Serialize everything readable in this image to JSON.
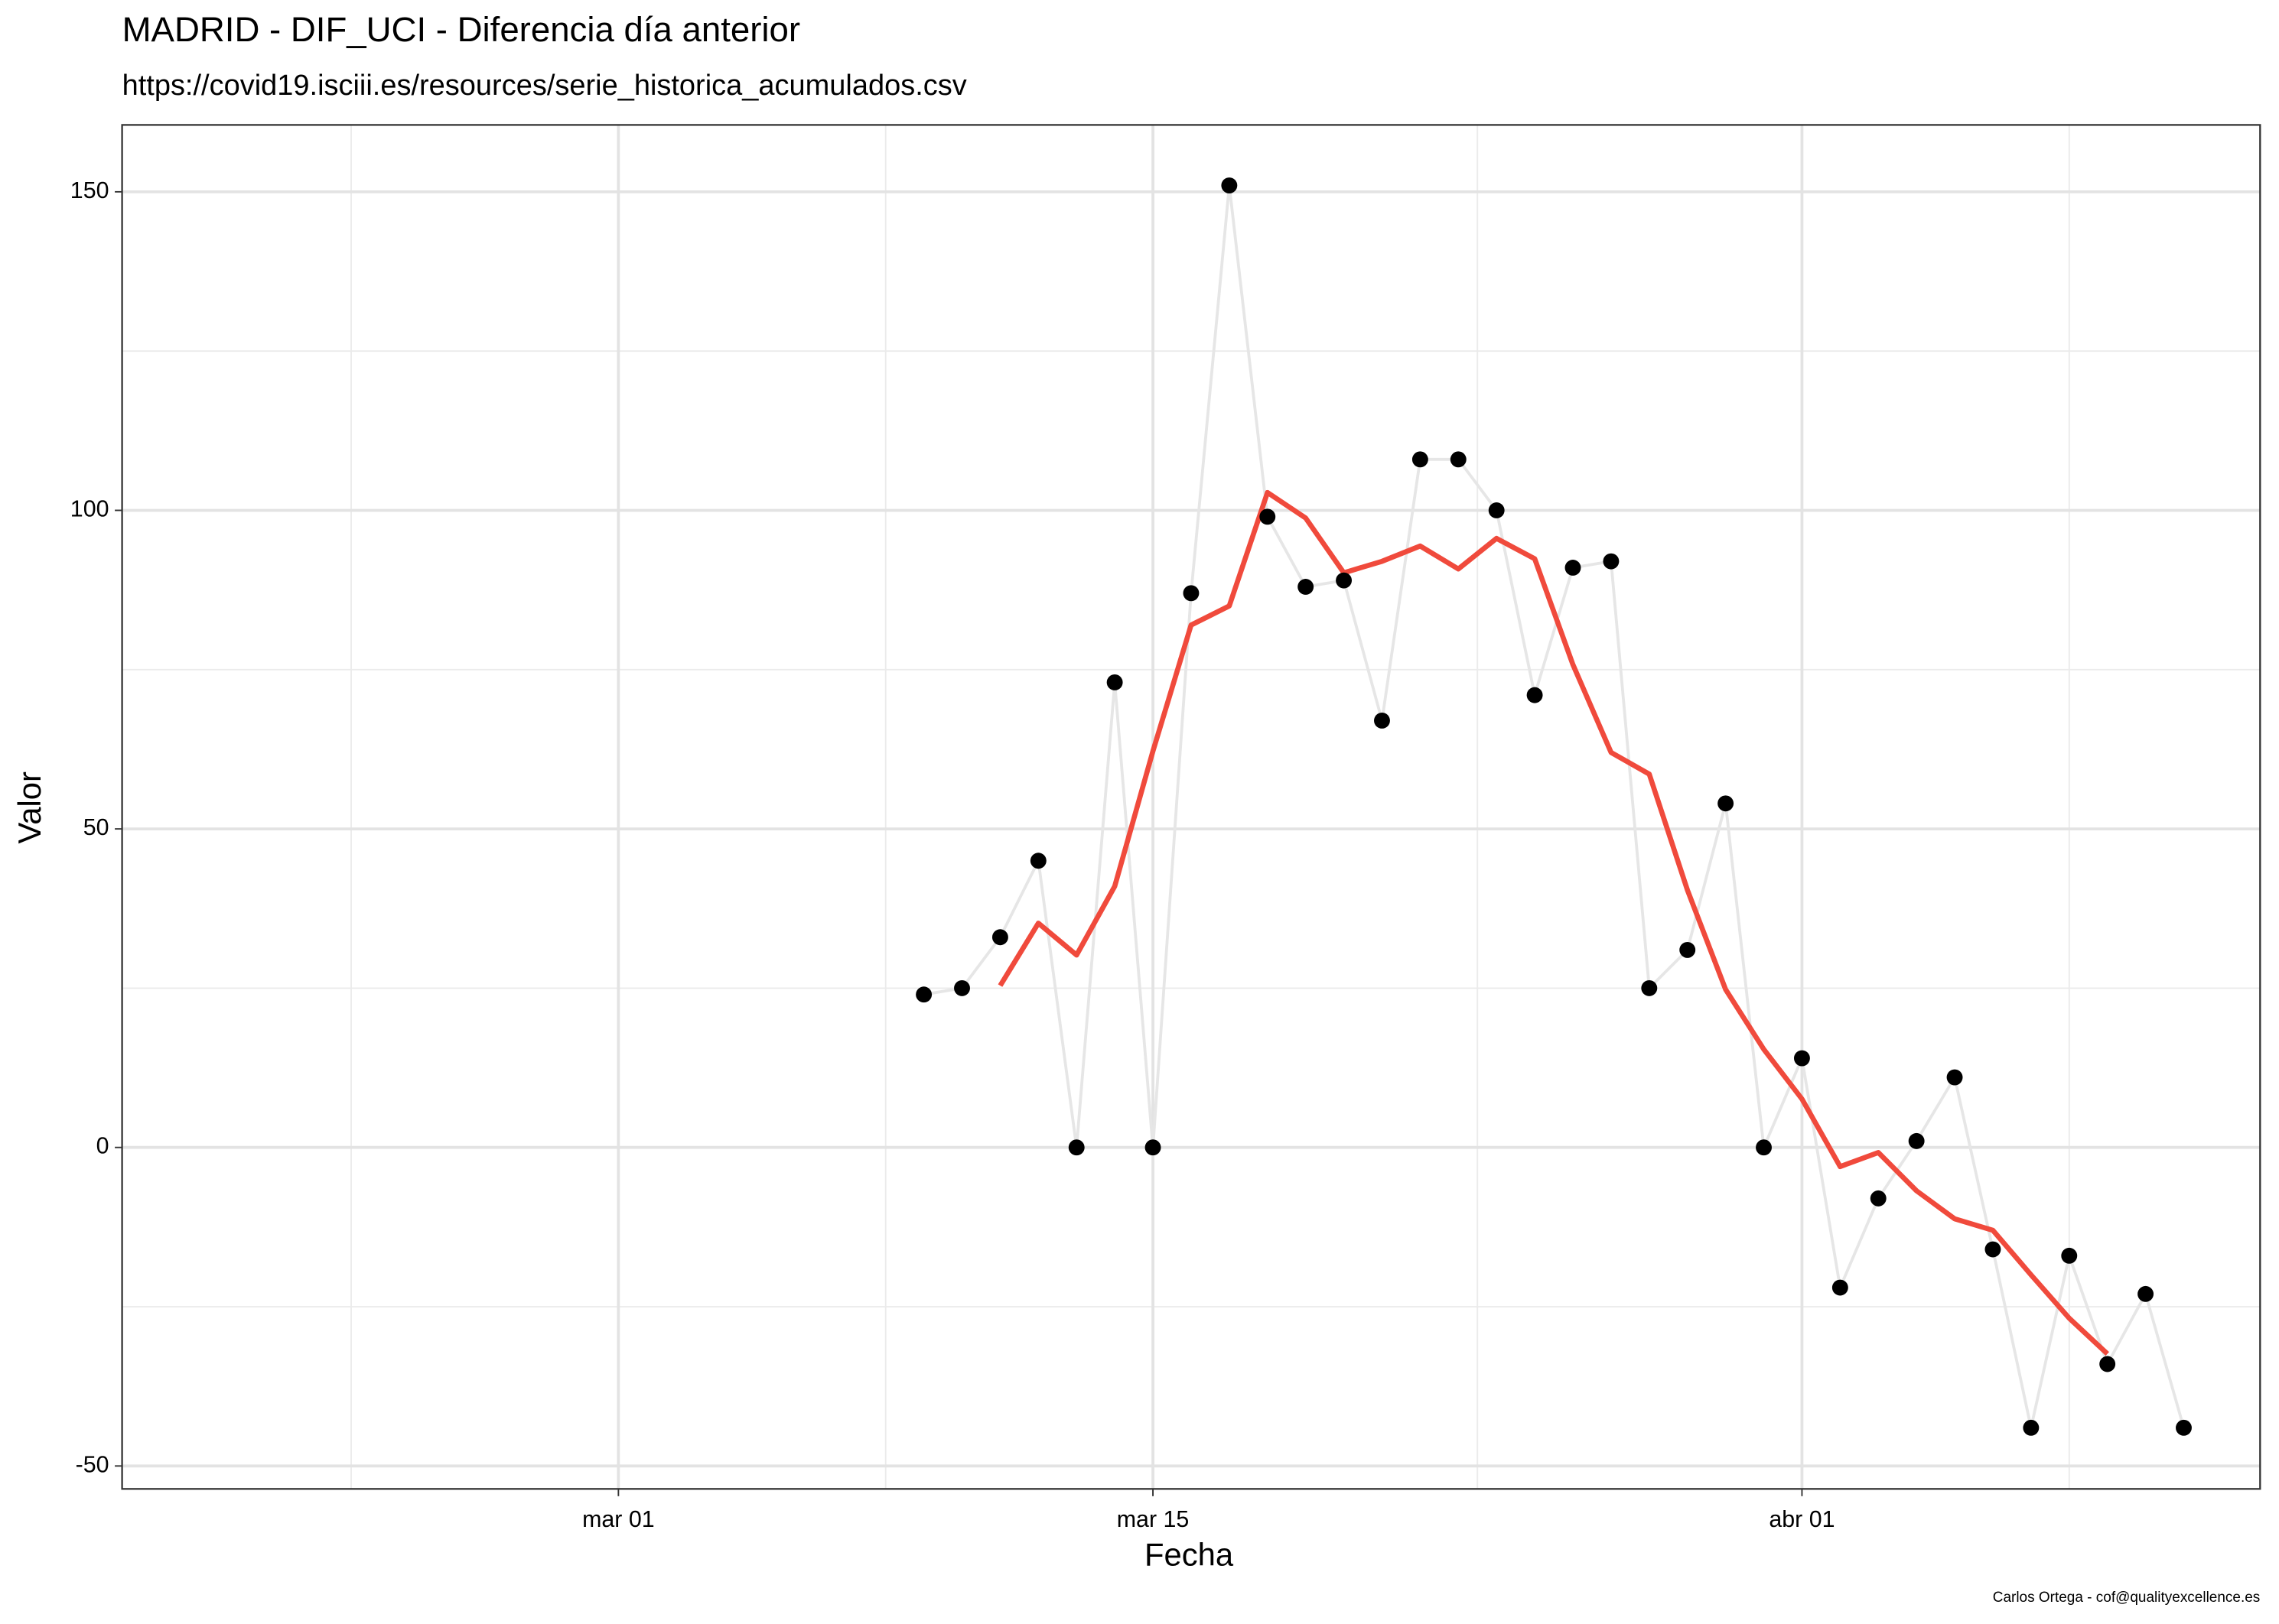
{
  "chart_data": {
    "type": "line",
    "title": "MADRID - DIF_UCI - Diferencia día anterior",
    "subtitle": "https://covid19.isciii.es/resources/serie_historica_acumulados.csv",
    "x_label": "Fecha",
    "y_label": "Valor",
    "caption": "Carlos Ortega - cof@qualityexcellence.es",
    "x": [
      "03-09",
      "03-10",
      "03-11",
      "03-12",
      "03-13",
      "03-14",
      "03-15",
      "03-16",
      "03-17",
      "03-18",
      "03-19",
      "03-20",
      "03-21",
      "03-22",
      "03-23",
      "03-24",
      "03-25",
      "03-26",
      "03-27",
      "03-28",
      "03-29",
      "03-30",
      "03-31",
      "04-01",
      "04-02",
      "04-03",
      "04-04",
      "04-05",
      "04-06",
      "04-07",
      "04-08",
      "04-09",
      "04-10",
      "04-11"
    ],
    "series": [
      {
        "color": "#e6e6e6",
        "point_color": "#000000",
        "markers": true,
        "values": [
          24,
          25,
          33,
          45,
          0,
          73,
          0,
          87,
          151,
          99,
          88,
          89,
          67,
          108,
          108,
          100,
          71,
          91,
          92,
          25,
          31,
          54,
          0,
          14,
          -22,
          -8,
          1,
          11,
          -16,
          -44,
          -17,
          -34,
          -23,
          -44
        ]
      },
      {
        "color": "#f04a3c",
        "markers": false,
        "values": [
          null,
          null,
          25.4,
          35.2,
          30.2,
          41,
          62.2,
          82,
          85,
          102.8,
          98.8,
          90.2,
          92,
          94.4,
          90.8,
          95.6,
          92.4,
          75.8,
          62,
          58.6,
          40.4,
          24.8,
          15.4,
          7.6,
          -3,
          -0.8,
          -6.8,
          -11.2,
          -13,
          -20,
          -26.8,
          -32.4,
          null,
          null
        ]
      }
    ],
    "xlim": [
      "02-17",
      "04-13"
    ],
    "xticks": [
      {
        "value": "03-01",
        "label": "mar 01"
      },
      {
        "value": "03-15",
        "label": "mar 15"
      },
      {
        "value": "04-01",
        "label": "abr 01"
      }
    ],
    "ylim": [
      -53.6,
      160.5
    ],
    "yticks": [
      -50,
      0,
      50,
      100,
      150
    ],
    "grid": true,
    "minor_grid": true
  }
}
